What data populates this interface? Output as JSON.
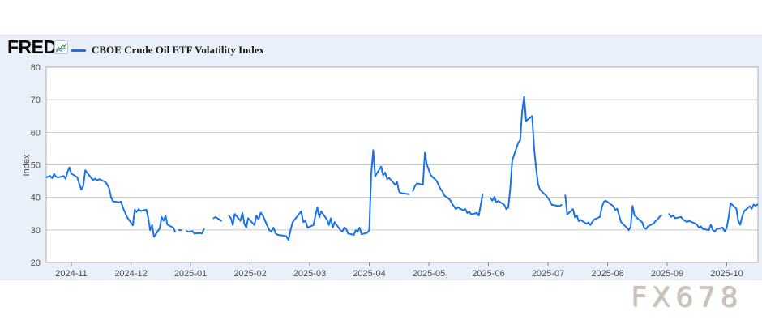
{
  "header": {
    "brand": "FRED",
    "brand_mark": "®",
    "legend": {
      "series_label": "CBOE Crude Oil ETF Volatility Index",
      "line_color": "#1a73e8"
    }
  },
  "watermark": "FX678",
  "colors": {
    "panel_bg": "#e9f0f9",
    "plot_bg": "#ffffff",
    "grid": "#cccccc",
    "plot_border": "#b0b0b0",
    "line": "#1a73e8",
    "tick_text": "#4d4d4d",
    "axis_title": "#444444",
    "icon_green": "#44a15c",
    "icon_blue": "#5b8fd9"
  },
  "chart_data": {
    "type": "line",
    "title": "CBOE Crude Oil ETF Volatility Index",
    "ylabel": "Index",
    "xlabel": "",
    "ylim": [
      20,
      80
    ],
    "yticks": [
      20,
      30,
      40,
      50,
      60,
      70,
      80
    ],
    "xticks": [
      "2024-11",
      "2024-12",
      "2025-01",
      "2025-02",
      "2025-03",
      "2025-04",
      "2025-05",
      "2025-06",
      "2025-07",
      "2025-08",
      "2025-09",
      "2025-10"
    ],
    "x_range": [
      "2024-10-19",
      "2025-10-17"
    ],
    "grid": true,
    "legend_position": "top-left",
    "series": [
      {
        "name": "CBOE Crude Oil ETF Volatility Index",
        "color": "#1a73e8",
        "points": [
          [
            "2024-10-19",
            46.2
          ],
          [
            "2024-10-21",
            46.6
          ],
          [
            "2024-10-22",
            45.9
          ],
          [
            "2024-10-23",
            47.2
          ],
          [
            "2024-10-24",
            46.4
          ],
          [
            "2024-10-25",
            46.1
          ],
          [
            "2024-10-28",
            46.6
          ],
          [
            "2024-10-29",
            45.7
          ],
          [
            "2024-10-30",
            47.8
          ],
          [
            "2024-10-31",
            49.2
          ],
          [
            "2024-11-01",
            47.3
          ],
          [
            "2024-11-04",
            46.2
          ],
          [
            "2024-11-05",
            44.2
          ],
          [
            "2024-11-06",
            42.4
          ],
          [
            "2024-11-07",
            43.5
          ],
          [
            "2024-11-08",
            48.3
          ],
          [
            "2024-11-11",
            46.0
          ],
          [
            "2024-11-12",
            45.3
          ],
          [
            "2024-11-13",
            45.8
          ],
          [
            "2024-11-14",
            45.2
          ],
          [
            "2024-11-15",
            45.6
          ],
          [
            "2024-11-18",
            44.8
          ],
          [
            "2024-11-19",
            44.0
          ],
          [
            "2024-11-20",
            42.8
          ],
          [
            "2024-11-21",
            40.0
          ],
          [
            "2024-11-22",
            38.8
          ],
          [
            "2024-11-25",
            38.5
          ],
          [
            "2024-11-26",
            38.7
          ],
          [
            "2024-11-27",
            36.8
          ],
          [
            "2024-11-29",
            34.0
          ],
          [
            "2024-12-02",
            31.4
          ],
          [
            "2024-12-03",
            36.2
          ],
          [
            "2024-12-04",
            35.5
          ],
          [
            "2024-12-05",
            36.4
          ],
          [
            "2024-12-06",
            35.8
          ],
          [
            "2024-12-09",
            36.2
          ],
          [
            "2024-12-10",
            33.8
          ],
          [
            "2024-12-11",
            29.9
          ],
          [
            "2024-12-12",
            31.5
          ],
          [
            "2024-12-13",
            27.9
          ],
          [
            "2024-12-16",
            30.5
          ],
          [
            "2024-12-17",
            34.0
          ],
          [
            "2024-12-18",
            32.8
          ],
          [
            "2024-12-19",
            34.4
          ],
          [
            "2024-12-20",
            31.6
          ],
          [
            "2024-12-23",
            30.7
          ],
          [
            "2024-12-24",
            29.4
          ],
          [
            "2024-12-25",
            null
          ],
          [
            "2024-12-26",
            30.0
          ],
          [
            "2024-12-27",
            29.9
          ],
          [
            "2024-12-28",
            null
          ],
          [
            "2024-12-30",
            29.6
          ],
          [
            "2024-12-31",
            29.4
          ],
          [
            "2025-01-02",
            29.6
          ],
          [
            "2025-01-03",
            28.9
          ],
          [
            "2025-01-06",
            29.0
          ],
          [
            "2025-01-07",
            28.9
          ],
          [
            "2025-01-08",
            30.2
          ],
          [
            "2025-01-09",
            null
          ],
          [
            "2025-01-13",
            33.6
          ],
          [
            "2025-01-14",
            34.0
          ],
          [
            "2025-01-15",
            33.6
          ],
          [
            "2025-01-16",
            33.2
          ],
          [
            "2025-01-17",
            32.8
          ],
          [
            "2025-01-18",
            null
          ],
          [
            "2025-01-21",
            34.4
          ],
          [
            "2025-01-22",
            33.6
          ],
          [
            "2025-01-23",
            31.5
          ],
          [
            "2025-01-24",
            34.9
          ],
          [
            "2025-01-27",
            32.8
          ],
          [
            "2025-01-28",
            35.3
          ],
          [
            "2025-01-29",
            31.9
          ],
          [
            "2025-01-30",
            30.7
          ],
          [
            "2025-01-31",
            33.6
          ],
          [
            "2025-02-03",
            31.5
          ],
          [
            "2025-02-04",
            34.4
          ],
          [
            "2025-02-05",
            33.2
          ],
          [
            "2025-02-06",
            35.3
          ],
          [
            "2025-02-07",
            34.4
          ],
          [
            "2025-02-10",
            29.9
          ],
          [
            "2025-02-11",
            29.5
          ],
          [
            "2025-02-12",
            30.7
          ],
          [
            "2025-02-13",
            28.9
          ],
          [
            "2025-02-14",
            28.5
          ],
          [
            "2025-02-18",
            28.1
          ],
          [
            "2025-02-19",
            26.9
          ],
          [
            "2025-02-20",
            29.9
          ],
          [
            "2025-02-21",
            32.4
          ],
          [
            "2025-02-24",
            34.9
          ],
          [
            "2025-02-25",
            35.7
          ],
          [
            "2025-02-26",
            32.4
          ],
          [
            "2025-02-27",
            32.8
          ],
          [
            "2025-02-28",
            30.7
          ],
          [
            "2025-03-03",
            31.5
          ],
          [
            "2025-03-04",
            34.4
          ],
          [
            "2025-03-05",
            36.9
          ],
          [
            "2025-03-06",
            33.9
          ],
          [
            "2025-03-07",
            35.7
          ],
          [
            "2025-03-10",
            33.2
          ],
          [
            "2025-03-11",
            31.5
          ],
          [
            "2025-03-12",
            33.6
          ],
          [
            "2025-03-13",
            30.7
          ],
          [
            "2025-03-14",
            32.4
          ],
          [
            "2025-03-17",
            29.9
          ],
          [
            "2025-03-18",
            29.5
          ],
          [
            "2025-03-19",
            30.7
          ],
          [
            "2025-03-20",
            30.3
          ],
          [
            "2025-03-21",
            28.9
          ],
          [
            "2025-03-24",
            28.5
          ],
          [
            "2025-03-25",
            29.9
          ],
          [
            "2025-03-26",
            29.5
          ],
          [
            "2025-03-27",
            30.7
          ],
          [
            "2025-03-28",
            28.7
          ],
          [
            "2025-03-31",
            29.1
          ],
          [
            "2025-04-01",
            29.9
          ],
          [
            "2025-04-02",
            47.0
          ],
          [
            "2025-04-03",
            54.5
          ],
          [
            "2025-04-04",
            46.5
          ],
          [
            "2025-04-07",
            49.5
          ],
          [
            "2025-04-08",
            46.8
          ],
          [
            "2025-04-09",
            47.6
          ],
          [
            "2025-04-10",
            45.6
          ],
          [
            "2025-04-11",
            46.0
          ],
          [
            "2025-04-14",
            43.9
          ],
          [
            "2025-04-15",
            44.7
          ],
          [
            "2025-04-16",
            41.7
          ],
          [
            "2025-04-17",
            41.3
          ],
          [
            "2025-04-21",
            41.0
          ],
          [
            "2025-04-22",
            null
          ],
          [
            "2025-04-23",
            42.0
          ],
          [
            "2025-04-24",
            43.5
          ],
          [
            "2025-04-25",
            44.3
          ],
          [
            "2025-04-28",
            43.9
          ],
          [
            "2025-04-29",
            53.7
          ],
          [
            "2025-04-30",
            50.1
          ],
          [
            "2025-05-01",
            48.4
          ],
          [
            "2025-05-02",
            46.8
          ],
          [
            "2025-05-05",
            45.1
          ],
          [
            "2025-05-06",
            43.9
          ],
          [
            "2025-05-07",
            42.6
          ],
          [
            "2025-05-08",
            41.9
          ],
          [
            "2025-05-09",
            40.6
          ],
          [
            "2025-05-12",
            39.3
          ],
          [
            "2025-05-13",
            38.1
          ],
          [
            "2025-05-14",
            37.3
          ],
          [
            "2025-05-15",
            36.4
          ],
          [
            "2025-05-16",
            36.9
          ],
          [
            "2025-05-19",
            36.0
          ],
          [
            "2025-05-20",
            36.4
          ],
          [
            "2025-05-21",
            35.2
          ],
          [
            "2025-05-22",
            35.6
          ],
          [
            "2025-05-23",
            34.8
          ],
          [
            "2025-05-26",
            35.2
          ],
          [
            "2025-05-27",
            34.4
          ],
          [
            "2025-05-28",
            37.7
          ],
          [
            "2025-05-29",
            41.0
          ],
          [
            "2025-05-30",
            null
          ],
          [
            "2025-06-02",
            39.8
          ],
          [
            "2025-06-03",
            39.0
          ],
          [
            "2025-06-04",
            40.2
          ],
          [
            "2025-06-05",
            38.5
          ],
          [
            "2025-06-06",
            38.9
          ],
          [
            "2025-06-09",
            37.7
          ],
          [
            "2025-06-10",
            36.4
          ],
          [
            "2025-06-11",
            36.9
          ],
          [
            "2025-06-12",
            42.6
          ],
          [
            "2025-06-13",
            51.4
          ],
          [
            "2025-06-16",
            56.8
          ],
          [
            "2025-06-17",
            57.6
          ],
          [
            "2025-06-18",
            66.4
          ],
          [
            "2025-06-19",
            71.0
          ],
          [
            "2025-06-20",
            63.5
          ],
          [
            "2025-06-23",
            65.0
          ],
          [
            "2025-06-24",
            55.0
          ],
          [
            "2025-06-25",
            48.9
          ],
          [
            "2025-06-26",
            44.0
          ],
          [
            "2025-06-27",
            42.3
          ],
          [
            "2025-06-30",
            40.6
          ],
          [
            "2025-07-01",
            39.8
          ],
          [
            "2025-07-02",
            38.9
          ],
          [
            "2025-07-03",
            37.7
          ],
          [
            "2025-07-07",
            37.3
          ],
          [
            "2025-07-08",
            37.7
          ],
          [
            "2025-07-09",
            null
          ],
          [
            "2025-07-10",
            40.6
          ],
          [
            "2025-07-11",
            34.8
          ],
          [
            "2025-07-14",
            36.4
          ],
          [
            "2025-07-15",
            33.9
          ],
          [
            "2025-07-16",
            34.4
          ],
          [
            "2025-07-17",
            32.7
          ],
          [
            "2025-07-18",
            33.1
          ],
          [
            "2025-07-21",
            31.9
          ],
          [
            "2025-07-22",
            32.3
          ],
          [
            "2025-07-23",
            31.5
          ],
          [
            "2025-07-24",
            32.4
          ],
          [
            "2025-07-25",
            33.2
          ],
          [
            "2025-07-28",
            34.0
          ],
          [
            "2025-07-29",
            36.9
          ],
          [
            "2025-07-30",
            38.6
          ],
          [
            "2025-07-31",
            39.0
          ],
          [
            "2025-08-01",
            38.6
          ],
          [
            "2025-08-04",
            37.3
          ],
          [
            "2025-08-05",
            36.1
          ],
          [
            "2025-08-06",
            36.5
          ],
          [
            "2025-08-07",
            34.5
          ],
          [
            "2025-08-08",
            32.4
          ],
          [
            "2025-08-11",
            30.7
          ],
          [
            "2025-08-12",
            29.9
          ],
          [
            "2025-08-13",
            31.0
          ],
          [
            "2025-08-14",
            37.4
          ],
          [
            "2025-08-15",
            34.5
          ],
          [
            "2025-08-18",
            32.8
          ],
          [
            "2025-08-19",
            32.4
          ],
          [
            "2025-08-20",
            30.7
          ],
          [
            "2025-08-21",
            30.3
          ],
          [
            "2025-08-22",
            31.1
          ],
          [
            "2025-08-25",
            32.0
          ],
          [
            "2025-08-26",
            32.8
          ],
          [
            "2025-08-27",
            33.2
          ],
          [
            "2025-08-28",
            34.0
          ],
          [
            "2025-08-29",
            34.5
          ],
          [
            "2025-08-30",
            null
          ],
          [
            "2025-09-02",
            34.9
          ],
          [
            "2025-09-03",
            34.0
          ],
          [
            "2025-09-04",
            34.5
          ],
          [
            "2025-09-05",
            33.6
          ],
          [
            "2025-09-08",
            34.0
          ],
          [
            "2025-09-09",
            33.2
          ],
          [
            "2025-09-10",
            32.8
          ],
          [
            "2025-09-11",
            32.4
          ],
          [
            "2025-09-12",
            32.8
          ],
          [
            "2025-09-15",
            32.0
          ],
          [
            "2025-09-16",
            31.6
          ],
          [
            "2025-09-17",
            30.7
          ],
          [
            "2025-09-18",
            31.1
          ],
          [
            "2025-09-19",
            30.3
          ],
          [
            "2025-09-22",
            29.9
          ],
          [
            "2025-09-23",
            31.6
          ],
          [
            "2025-09-24",
            29.9
          ],
          [
            "2025-09-25",
            29.5
          ],
          [
            "2025-09-26",
            30.3
          ],
          [
            "2025-09-29",
            30.7
          ],
          [
            "2025-09-30",
            29.5
          ],
          [
            "2025-10-01",
            30.7
          ],
          [
            "2025-10-02",
            34.0
          ],
          [
            "2025-10-03",
            38.2
          ],
          [
            "2025-10-06",
            36.5
          ],
          [
            "2025-10-07",
            32.8
          ],
          [
            "2025-10-08",
            31.6
          ],
          [
            "2025-10-09",
            34.0
          ],
          [
            "2025-10-10",
            35.7
          ],
          [
            "2025-10-13",
            37.3
          ],
          [
            "2025-10-14",
            36.5
          ],
          [
            "2025-10-15",
            37.8
          ],
          [
            "2025-10-16",
            37.4
          ],
          [
            "2025-10-17",
            37.8
          ]
        ]
      }
    ]
  }
}
